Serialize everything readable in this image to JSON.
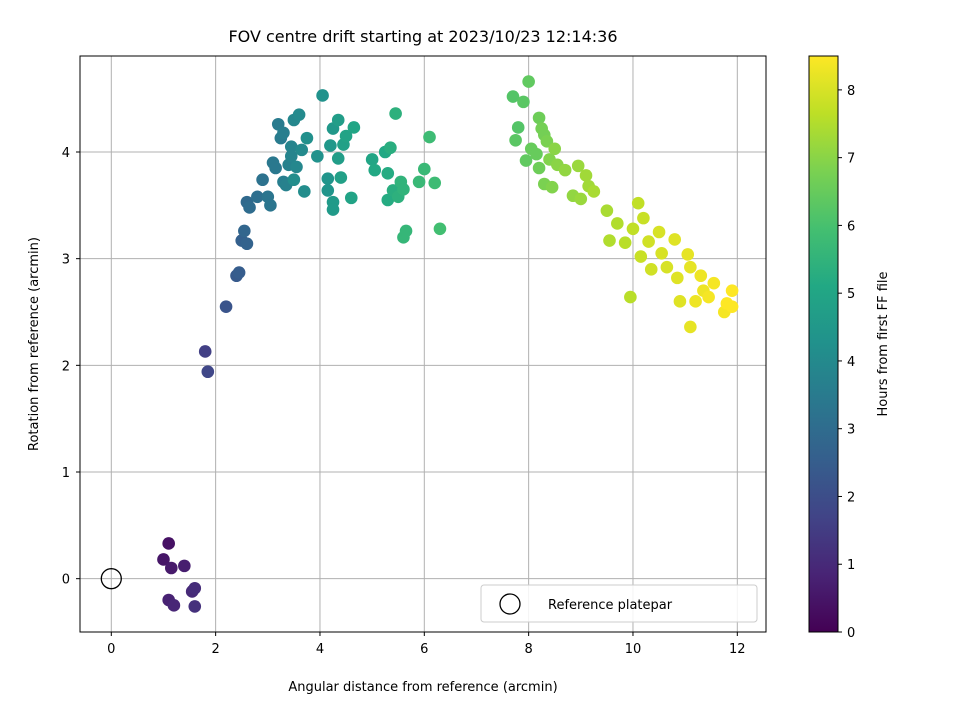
{
  "chart_data": {
    "type": "scatter",
    "title": "FOV centre drift starting at 2023/10/23 12:14:36",
    "xlabel": "Angular distance from reference (arcmin)",
    "ylabel": "Rotation from reference (arcmin)",
    "xlim": [
      -0.6,
      12.55
    ],
    "ylim": [
      -0.5,
      4.9
    ],
    "xticks": [
      0,
      2,
      4,
      6,
      8,
      10,
      12
    ],
    "yticks": [
      0,
      1,
      2,
      3,
      4
    ],
    "grid": true,
    "colormap": "viridis",
    "colorbar": {
      "label": "Hours from first FF file",
      "range": [
        0,
        8.5
      ],
      "ticks": [
        0,
        1,
        2,
        3,
        4,
        5,
        6,
        7,
        8
      ]
    },
    "legend": {
      "position": "bottom-right",
      "entries": [
        "Reference platepar"
      ]
    },
    "reference_point": {
      "x": 0,
      "y": 0,
      "label": "Reference platepar"
    },
    "points": [
      {
        "x": 1.1,
        "y": 0.33,
        "c": 0.4
      },
      {
        "x": 1.0,
        "y": 0.18,
        "c": 0.5
      },
      {
        "x": 1.15,
        "y": 0.1,
        "c": 0.6
      },
      {
        "x": 1.4,
        "y": 0.12,
        "c": 0.7
      },
      {
        "x": 1.1,
        "y": -0.2,
        "c": 0.8
      },
      {
        "x": 1.2,
        "y": -0.25,
        "c": 0.9
      },
      {
        "x": 1.55,
        "y": -0.12,
        "c": 1.0
      },
      {
        "x": 1.6,
        "y": -0.09,
        "c": 1.1
      },
      {
        "x": 1.6,
        "y": -0.26,
        "c": 1.2
      },
      {
        "x": 1.8,
        "y": 2.13,
        "c": 1.6
      },
      {
        "x": 1.85,
        "y": 1.94,
        "c": 1.8
      },
      {
        "x": 2.2,
        "y": 2.55,
        "c": 2.2
      },
      {
        "x": 2.4,
        "y": 2.84,
        "c": 2.4
      },
      {
        "x": 2.45,
        "y": 2.87,
        "c": 2.5
      },
      {
        "x": 2.5,
        "y": 3.17,
        "c": 2.6
      },
      {
        "x": 2.6,
        "y": 3.14,
        "c": 2.7
      },
      {
        "x": 2.55,
        "y": 3.26,
        "c": 2.8
      },
      {
        "x": 2.6,
        "y": 3.53,
        "c": 2.9
      },
      {
        "x": 2.65,
        "y": 3.48,
        "c": 3.0
      },
      {
        "x": 2.8,
        "y": 3.58,
        "c": 3.1
      },
      {
        "x": 2.9,
        "y": 3.74,
        "c": 3.2
      },
      {
        "x": 3.0,
        "y": 3.58,
        "c": 3.3
      },
      {
        "x": 3.05,
        "y": 3.5,
        "c": 3.3
      },
      {
        "x": 3.1,
        "y": 3.9,
        "c": 3.4
      },
      {
        "x": 3.15,
        "y": 3.85,
        "c": 3.4
      },
      {
        "x": 3.2,
        "y": 4.26,
        "c": 3.5
      },
      {
        "x": 3.25,
        "y": 4.13,
        "c": 3.5
      },
      {
        "x": 3.3,
        "y": 3.72,
        "c": 3.6
      },
      {
        "x": 3.3,
        "y": 4.18,
        "c": 3.6
      },
      {
        "x": 3.35,
        "y": 3.69,
        "c": 3.7
      },
      {
        "x": 3.4,
        "y": 3.88,
        "c": 3.7
      },
      {
        "x": 3.45,
        "y": 4.05,
        "c": 3.8
      },
      {
        "x": 3.45,
        "y": 3.96,
        "c": 3.8
      },
      {
        "x": 3.5,
        "y": 4.3,
        "c": 3.9
      },
      {
        "x": 3.55,
        "y": 3.86,
        "c": 3.9
      },
      {
        "x": 3.6,
        "y": 4.35,
        "c": 4.0
      },
      {
        "x": 3.65,
        "y": 4.02,
        "c": 4.0
      },
      {
        "x": 3.5,
        "y": 3.74,
        "c": 4.1
      },
      {
        "x": 3.7,
        "y": 3.63,
        "c": 4.1
      },
      {
        "x": 3.75,
        "y": 4.13,
        "c": 4.2
      },
      {
        "x": 3.95,
        "y": 3.96,
        "c": 4.3
      },
      {
        "x": 4.05,
        "y": 4.53,
        "c": 4.3
      },
      {
        "x": 4.15,
        "y": 3.75,
        "c": 4.4
      },
      {
        "x": 4.15,
        "y": 3.64,
        "c": 4.4
      },
      {
        "x": 4.2,
        "y": 4.06,
        "c": 4.5
      },
      {
        "x": 4.25,
        "y": 4.22,
        "c": 4.5
      },
      {
        "x": 4.25,
        "y": 3.53,
        "c": 4.6
      },
      {
        "x": 4.25,
        "y": 3.46,
        "c": 4.6
      },
      {
        "x": 4.35,
        "y": 4.3,
        "c": 4.7
      },
      {
        "x": 4.35,
        "y": 3.94,
        "c": 4.7
      },
      {
        "x": 4.4,
        "y": 3.76,
        "c": 4.8
      },
      {
        "x": 4.45,
        "y": 4.07,
        "c": 4.8
      },
      {
        "x": 4.5,
        "y": 4.15,
        "c": 4.9
      },
      {
        "x": 4.6,
        "y": 3.57,
        "c": 4.9
      },
      {
        "x": 4.65,
        "y": 4.23,
        "c": 5.0
      },
      {
        "x": 5.0,
        "y": 3.93,
        "c": 5.0
      },
      {
        "x": 5.05,
        "y": 3.83,
        "c": 5.1
      },
      {
        "x": 5.25,
        "y": 4.0,
        "c": 5.1
      },
      {
        "x": 5.3,
        "y": 3.8,
        "c": 5.2
      },
      {
        "x": 5.3,
        "y": 3.55,
        "c": 5.2
      },
      {
        "x": 5.35,
        "y": 4.04,
        "c": 5.3
      },
      {
        "x": 5.4,
        "y": 3.64,
        "c": 5.3
      },
      {
        "x": 5.45,
        "y": 4.36,
        "c": 5.4
      },
      {
        "x": 5.5,
        "y": 3.58,
        "c": 5.4
      },
      {
        "x": 5.55,
        "y": 3.72,
        "c": 5.5
      },
      {
        "x": 5.6,
        "y": 3.65,
        "c": 5.5
      },
      {
        "x": 5.6,
        "y": 3.2,
        "c": 5.6
      },
      {
        "x": 5.65,
        "y": 3.26,
        "c": 5.6
      },
      {
        "x": 5.9,
        "y": 3.72,
        "c": 5.7
      },
      {
        "x": 6.0,
        "y": 3.84,
        "c": 5.7
      },
      {
        "x": 6.1,
        "y": 4.14,
        "c": 5.8
      },
      {
        "x": 6.2,
        "y": 3.71,
        "c": 5.8
      },
      {
        "x": 6.3,
        "y": 3.28,
        "c": 5.9
      },
      {
        "x": 7.7,
        "y": 4.52,
        "c": 6.2
      },
      {
        "x": 7.8,
        "y": 4.23,
        "c": 6.2
      },
      {
        "x": 7.75,
        "y": 4.11,
        "c": 6.3
      },
      {
        "x": 7.9,
        "y": 4.47,
        "c": 6.3
      },
      {
        "x": 8.0,
        "y": 4.66,
        "c": 6.4
      },
      {
        "x": 7.95,
        "y": 3.92,
        "c": 6.4
      },
      {
        "x": 8.05,
        "y": 4.03,
        "c": 6.5
      },
      {
        "x": 8.15,
        "y": 3.98,
        "c": 6.5
      },
      {
        "x": 8.2,
        "y": 4.32,
        "c": 6.6
      },
      {
        "x": 8.2,
        "y": 3.85,
        "c": 6.6
      },
      {
        "x": 8.25,
        "y": 4.22,
        "c": 6.7
      },
      {
        "x": 8.3,
        "y": 4.16,
        "c": 6.7
      },
      {
        "x": 8.3,
        "y": 3.7,
        "c": 6.8
      },
      {
        "x": 8.35,
        "y": 4.1,
        "c": 6.8
      },
      {
        "x": 8.4,
        "y": 3.93,
        "c": 6.9
      },
      {
        "x": 8.45,
        "y": 3.67,
        "c": 6.9
      },
      {
        "x": 8.5,
        "y": 4.03,
        "c": 7.0
      },
      {
        "x": 8.55,
        "y": 3.88,
        "c": 7.0
      },
      {
        "x": 8.7,
        "y": 3.83,
        "c": 7.1
      },
      {
        "x": 8.85,
        "y": 3.59,
        "c": 7.1
      },
      {
        "x": 8.95,
        "y": 3.87,
        "c": 7.2
      },
      {
        "x": 9.0,
        "y": 3.56,
        "c": 7.2
      },
      {
        "x": 9.1,
        "y": 3.78,
        "c": 7.3
      },
      {
        "x": 9.15,
        "y": 3.68,
        "c": 7.3
      },
      {
        "x": 9.25,
        "y": 3.63,
        "c": 7.4
      },
      {
        "x": 9.5,
        "y": 3.45,
        "c": 7.4
      },
      {
        "x": 9.55,
        "y": 3.17,
        "c": 7.5
      },
      {
        "x": 9.7,
        "y": 3.33,
        "c": 7.5
      },
      {
        "x": 9.85,
        "y": 3.15,
        "c": 7.6
      },
      {
        "x": 9.95,
        "y": 2.64,
        "c": 7.6
      },
      {
        "x": 10.0,
        "y": 3.28,
        "c": 7.7
      },
      {
        "x": 10.1,
        "y": 3.52,
        "c": 7.7
      },
      {
        "x": 10.15,
        "y": 3.02,
        "c": 7.8
      },
      {
        "x": 10.2,
        "y": 3.38,
        "c": 7.8
      },
      {
        "x": 10.3,
        "y": 3.16,
        "c": 7.9
      },
      {
        "x": 10.35,
        "y": 2.9,
        "c": 7.9
      },
      {
        "x": 10.5,
        "y": 3.25,
        "c": 8.0
      },
      {
        "x": 10.55,
        "y": 3.05,
        "c": 8.0
      },
      {
        "x": 10.65,
        "y": 2.92,
        "c": 8.0
      },
      {
        "x": 10.8,
        "y": 3.18,
        "c": 8.1
      },
      {
        "x": 10.85,
        "y": 2.82,
        "c": 8.1
      },
      {
        "x": 10.9,
        "y": 2.6,
        "c": 8.1
      },
      {
        "x": 11.05,
        "y": 3.04,
        "c": 8.2
      },
      {
        "x": 11.1,
        "y": 2.92,
        "c": 8.2
      },
      {
        "x": 11.1,
        "y": 2.36,
        "c": 8.2
      },
      {
        "x": 11.2,
        "y": 2.6,
        "c": 8.3
      },
      {
        "x": 11.3,
        "y": 2.84,
        "c": 8.3
      },
      {
        "x": 11.35,
        "y": 2.7,
        "c": 8.3
      },
      {
        "x": 11.45,
        "y": 2.64,
        "c": 8.4
      },
      {
        "x": 11.55,
        "y": 2.77,
        "c": 8.4
      },
      {
        "x": 11.75,
        "y": 2.5,
        "c": 8.4
      },
      {
        "x": 11.8,
        "y": 2.58,
        "c": 8.5
      },
      {
        "x": 11.9,
        "y": 2.7,
        "c": 8.5
      },
      {
        "x": 11.9,
        "y": 2.55,
        "c": 8.5
      }
    ]
  }
}
